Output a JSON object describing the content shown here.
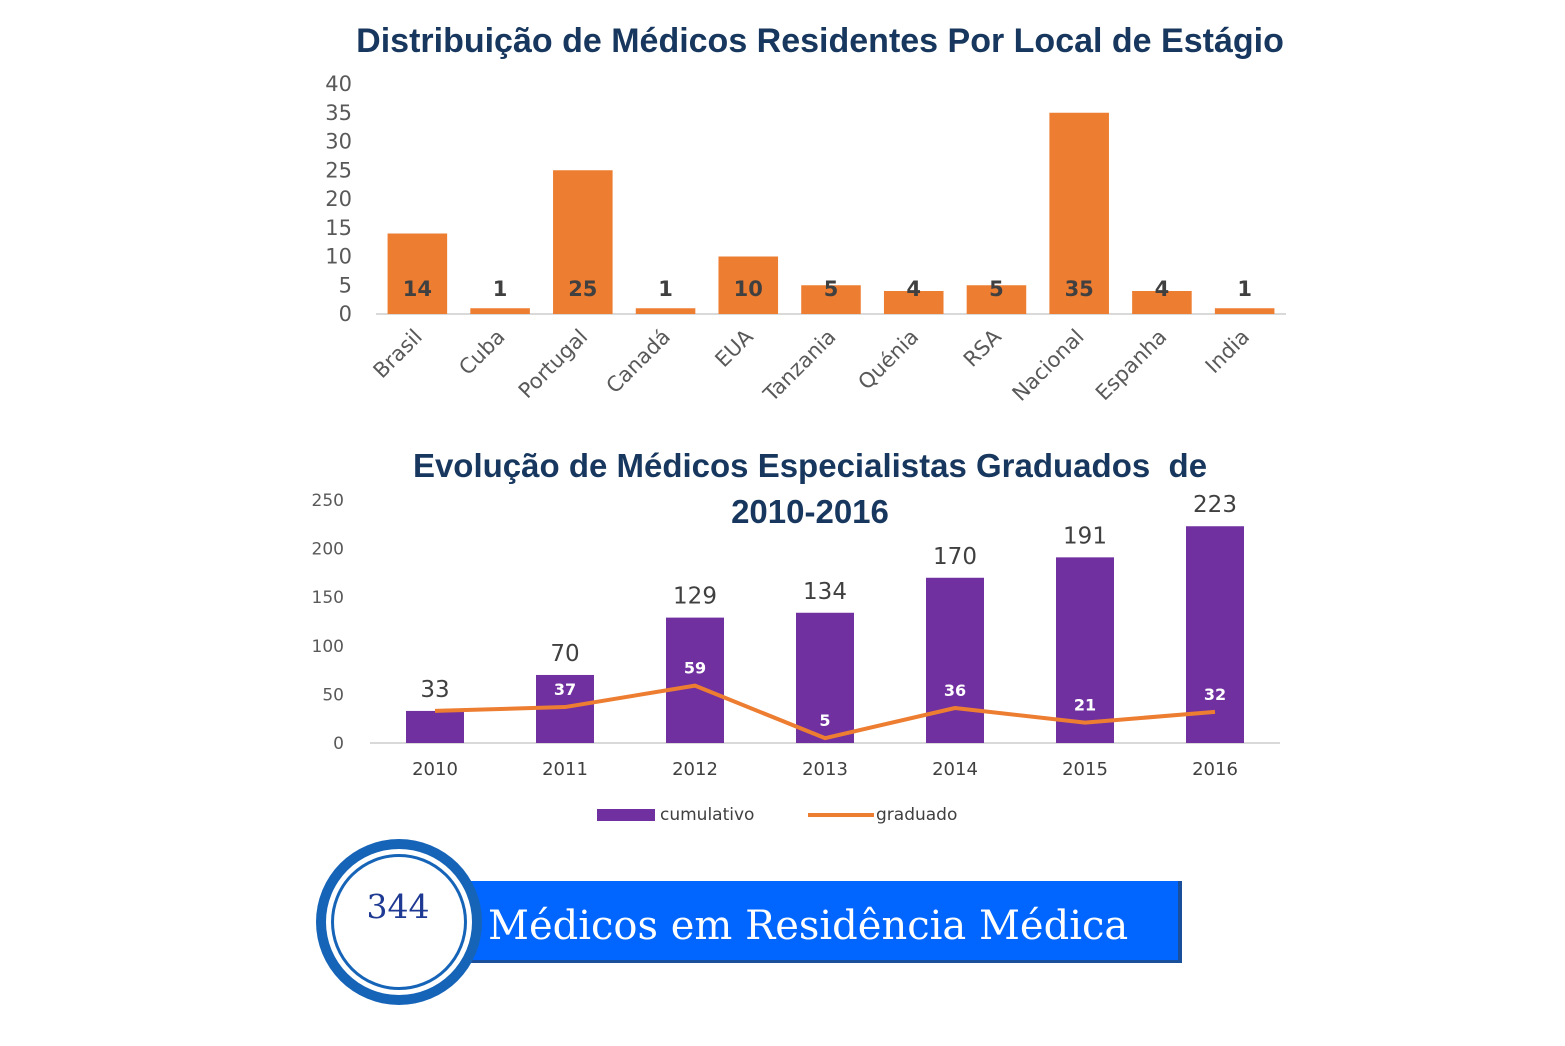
{
  "charts": {
    "residents": {
      "title": "Distribuição de Médicos Residentes Por Local de Estágio"
    },
    "graduates": {
      "title_line1": "Evolução de Médicos Especialistas Graduados  de",
      "title_line2": "2010-2016"
    }
  },
  "chart_data": [
    {
      "type": "bar",
      "title": "Distribuição de Médicos Residentes Por Local de Estágio",
      "categories": [
        "Brasil",
        "Cuba",
        "Portugal",
        "Canadá",
        "EUA",
        "Tanzania",
        "Quénia",
        "RSA",
        "Nacional",
        "Espanha",
        "India"
      ],
      "values": [
        14,
        1,
        25,
        1,
        10,
        5,
        4,
        5,
        35,
        4,
        1
      ],
      "ylim": [
        0,
        40
      ],
      "yticks": [
        0,
        5,
        10,
        15,
        20,
        25,
        30,
        35,
        40
      ],
      "color": "#ed7d31",
      "grid": false
    },
    {
      "type": "bar+line",
      "title": "Evolução de Médicos Especialistas Graduados  de 2010-2016",
      "categories": [
        "2010",
        "2011",
        "2012",
        "2013",
        "2014",
        "2015",
        "2016"
      ],
      "series": [
        {
          "name": "cumulativo",
          "type": "bar",
          "color": "#7030a0",
          "values": [
            33,
            70,
            129,
            134,
            170,
            191,
            223
          ]
        },
        {
          "name": "graduado",
          "type": "line",
          "color": "#ed7d31",
          "values": [
            33,
            37,
            59,
            5,
            36,
            21,
            32
          ]
        }
      ],
      "ylim": [
        0,
        250
      ],
      "yticks": [
        0,
        50,
        100,
        150,
        200,
        250
      ],
      "legend_position": "bottom",
      "grid": false
    }
  ],
  "summary": {
    "count": "344",
    "label": "Médicos em Residência Médica",
    "accent": "#0066ff",
    "ring_color": "#1664b8"
  }
}
